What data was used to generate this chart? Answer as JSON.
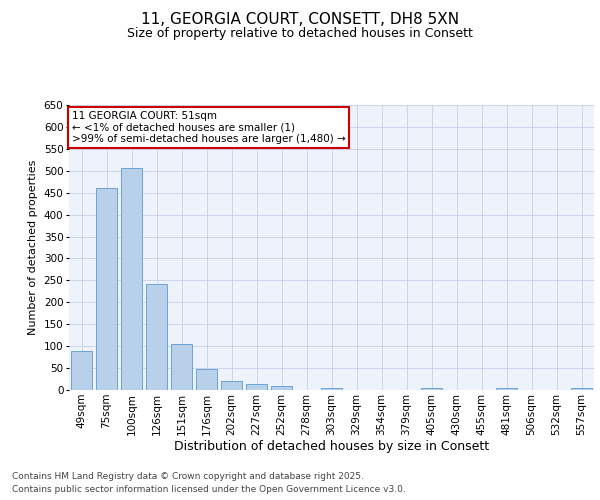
{
  "title": "11, GEORGIA COURT, CONSETT, DH8 5XN",
  "subtitle": "Size of property relative to detached houses in Consett",
  "xlabel": "Distribution of detached houses by size in Consett",
  "ylabel": "Number of detached properties",
  "categories": [
    "49sqm",
    "75sqm",
    "100sqm",
    "126sqm",
    "151sqm",
    "176sqm",
    "202sqm",
    "227sqm",
    "252sqm",
    "278sqm",
    "303sqm",
    "329sqm",
    "354sqm",
    "379sqm",
    "405sqm",
    "430sqm",
    "455sqm",
    "481sqm",
    "506sqm",
    "532sqm",
    "557sqm"
  ],
  "values": [
    90,
    460,
    507,
    242,
    105,
    48,
    20,
    13,
    8,
    0,
    5,
    0,
    0,
    0,
    4,
    0,
    0,
    5,
    0,
    0,
    4
  ],
  "bar_color": "#b8d0ea",
  "bar_edge_color": "#6ba3d6",
  "ylim": [
    0,
    650
  ],
  "yticks": [
    0,
    50,
    100,
    150,
    200,
    250,
    300,
    350,
    400,
    450,
    500,
    550,
    600,
    650
  ],
  "annotation_title": "11 GEORGIA COURT: 51sqm",
  "annotation_line1": "← <1% of detached houses are smaller (1)",
  "annotation_line2": ">99% of semi-detached houses are larger (1,480) →",
  "annotation_box_color": "#ffffff",
  "annotation_box_edge": "#cc0000",
  "footer1": "Contains HM Land Registry data © Crown copyright and database right 2025.",
  "footer2": "Contains public sector information licensed under the Open Government Licence v3.0.",
  "bg_color": "#eef2fb",
  "grid_color": "#c8d0e8",
  "title_fontsize": 11,
  "subtitle_fontsize": 9,
  "ylabel_fontsize": 8,
  "xlabel_fontsize": 9,
  "tick_fontsize": 7.5,
  "footer_fontsize": 6.5
}
